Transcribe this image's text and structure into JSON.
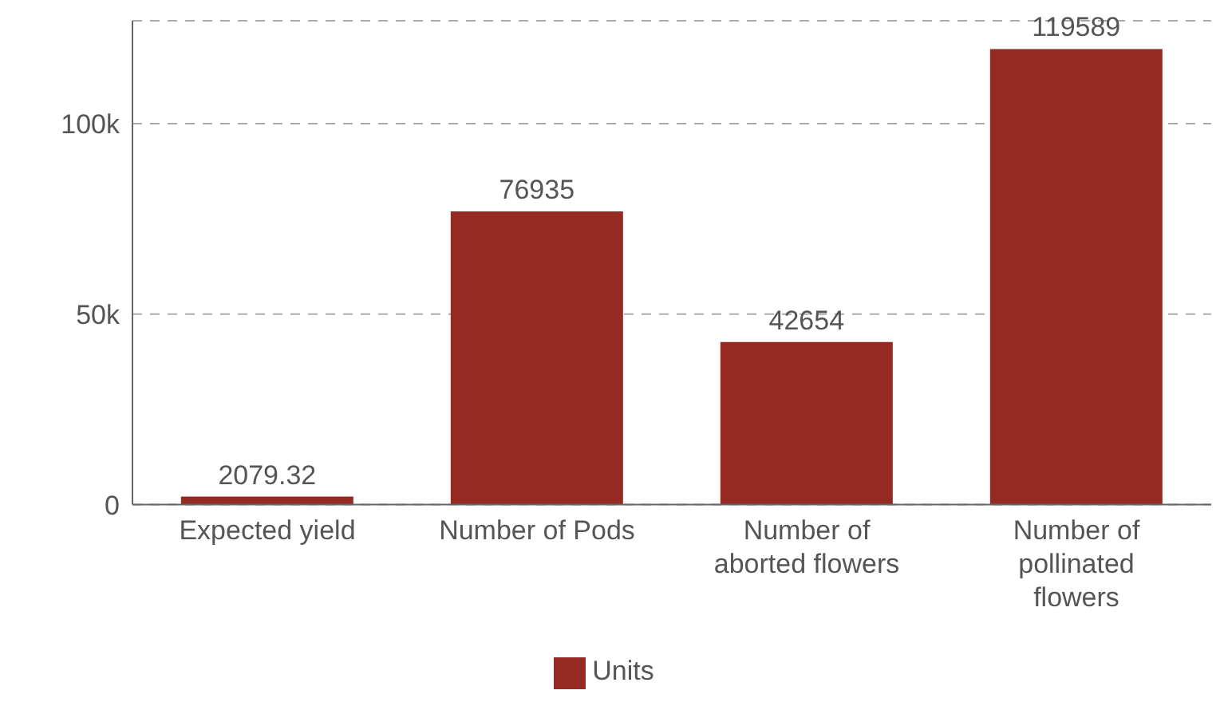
{
  "chart_data": {
    "type": "bar",
    "categories": [
      "Expected yield",
      "Number of Pods",
      "Number of aborted flowers",
      "Number of pollinated flowers"
    ],
    "series": [
      {
        "name": "Units",
        "color": "#952a23",
        "values": [
          2079.32,
          76935,
          42654,
          119589
        ]
      }
    ],
    "ylim": [
      0,
      127000
    ],
    "yticks": [
      0,
      {
        "value": 50000,
        "label": "50k"
      },
      {
        "value": 100000,
        "label": "100k"
      }
    ],
    "grid": "y",
    "legend": "bottom",
    "data_labels": true
  }
}
